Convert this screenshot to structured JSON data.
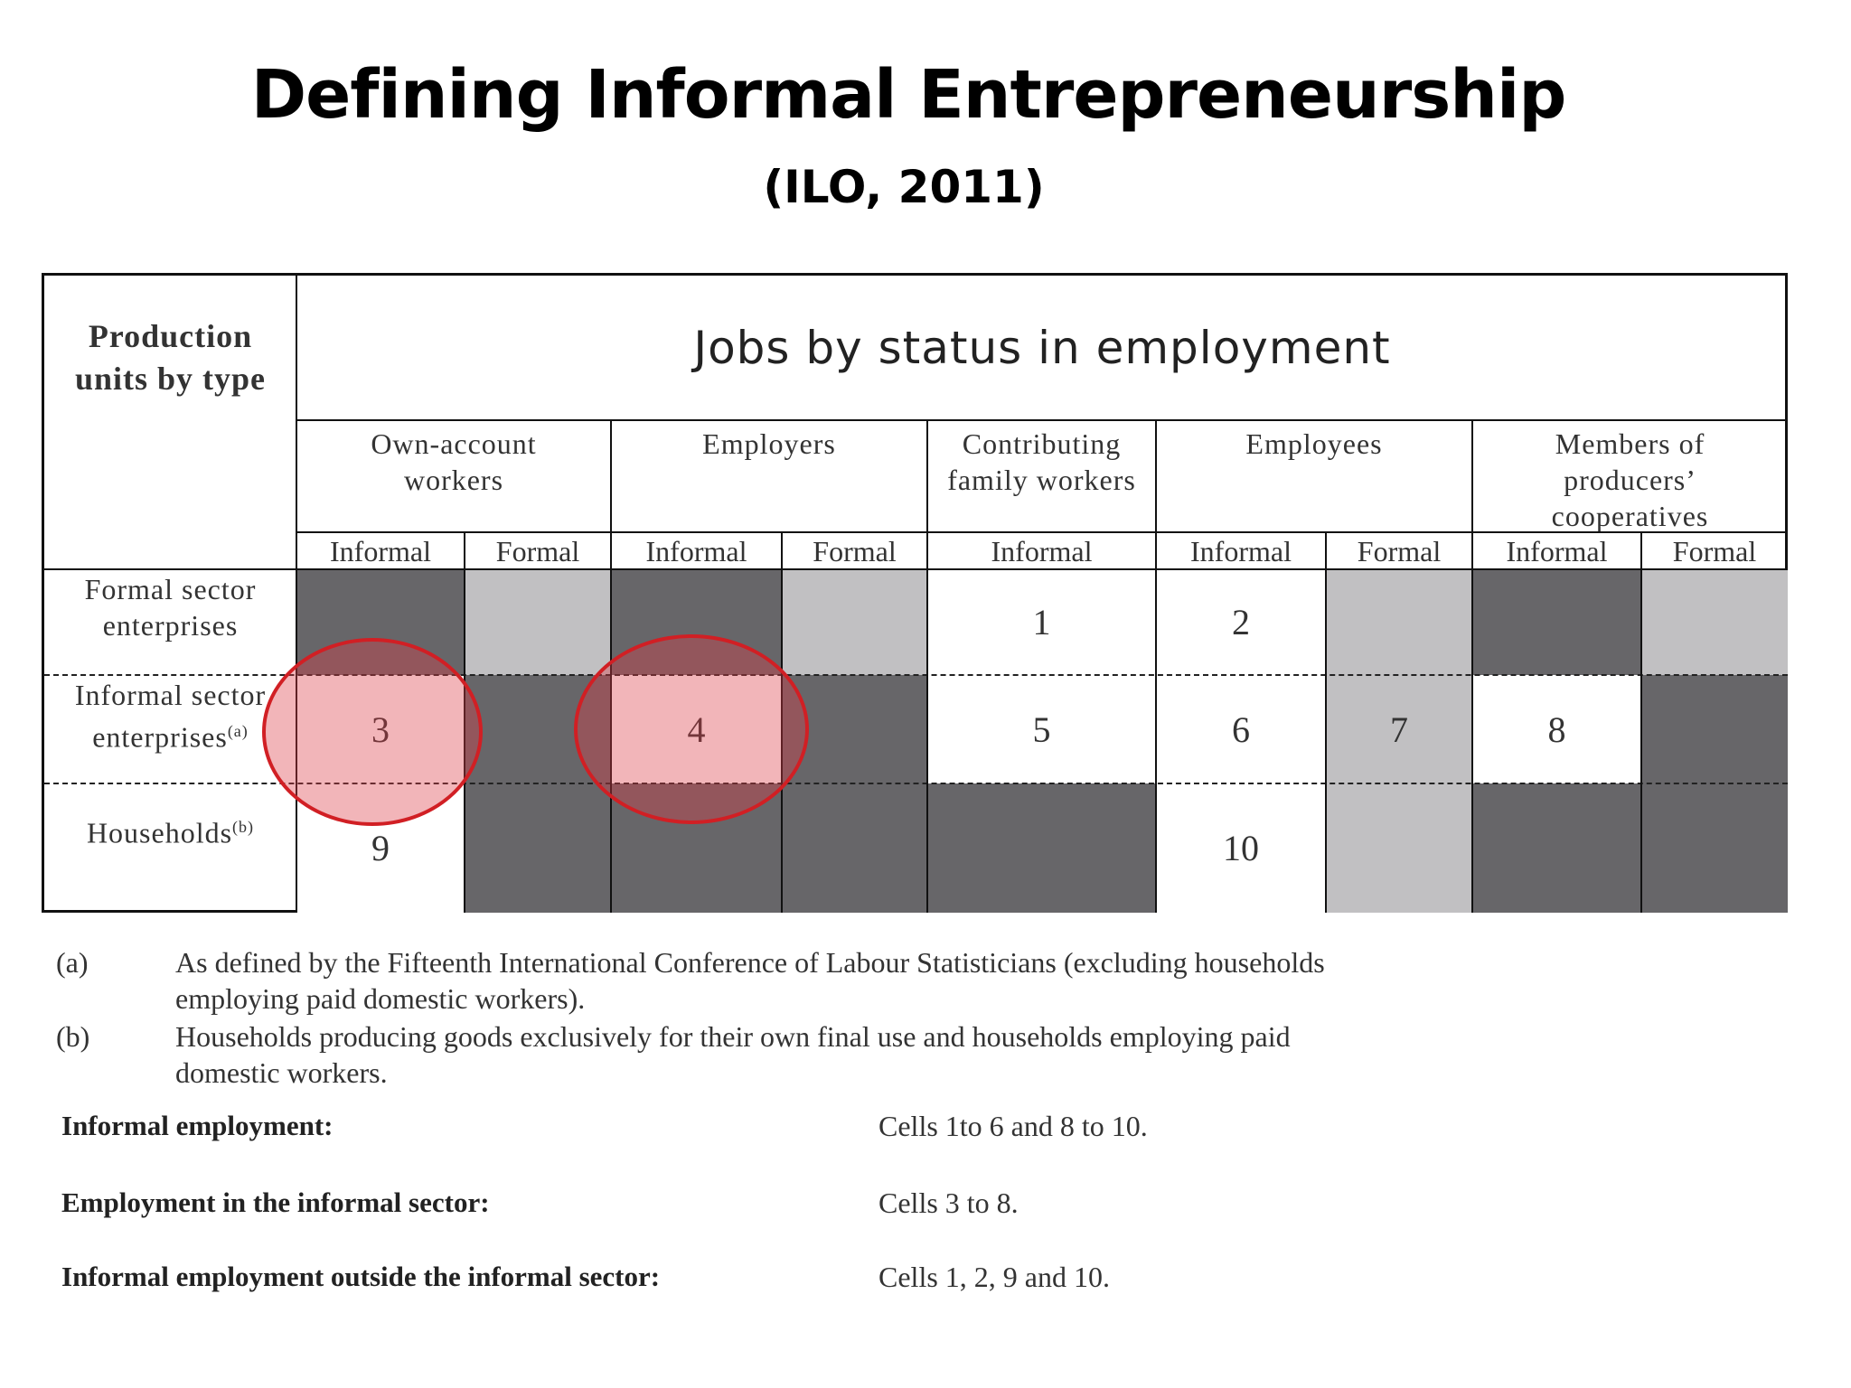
{
  "title": "Defining Informal Entrepreneurship",
  "subtitle": "(ILO, 2011)",
  "table": {
    "corner_header": "Production units by type",
    "main_header": "Jobs by status in employment",
    "groups": [
      "Own-account workers",
      "Employers",
      "Contributing family workers",
      "Employees",
      "Members of producers’ cooperatives"
    ],
    "subheaders": [
      "Informal",
      "Formal",
      "Informal",
      "Formal",
      "Informal",
      "Informal",
      "Formal",
      "Informal",
      "Formal"
    ],
    "rows": [
      {
        "label": "Formal sector enterprises",
        "sup": ""
      },
      {
        "label": "Informal sector enterprises",
        "sup": "(a)"
      },
      {
        "label": "Households",
        "sup": "(b)"
      }
    ],
    "cells": {
      "c1": "1",
      "c2": "2",
      "c3": "3",
      "c4": "4",
      "c5": "5",
      "c6": "6",
      "c7": "7",
      "c8": "8",
      "c9": "9",
      "c10": "10"
    },
    "highlight_color": "#d11f24",
    "dark_color": "#676669",
    "light_color": "#c1c0c2"
  },
  "footnotes": [
    {
      "mark": "(a)",
      "text": "As defined by the Fifteenth International Conference of Labour Statisticians (excluding households employing paid domestic workers)."
    },
    {
      "mark": "(b)",
      "text": "Households producing goods exclusively for their own final use and households employing paid domestic workers."
    }
  ],
  "definitions": [
    {
      "term": "Informal employment:",
      "value": "Cells 1to 6 and 8 to 10."
    },
    {
      "term": "Employment in the informal sector:",
      "value": "Cells 3 to 8."
    },
    {
      "term": "Informal employment outside the informal sector:",
      "value": "Cells 1, 2, 9 and 10."
    }
  ]
}
